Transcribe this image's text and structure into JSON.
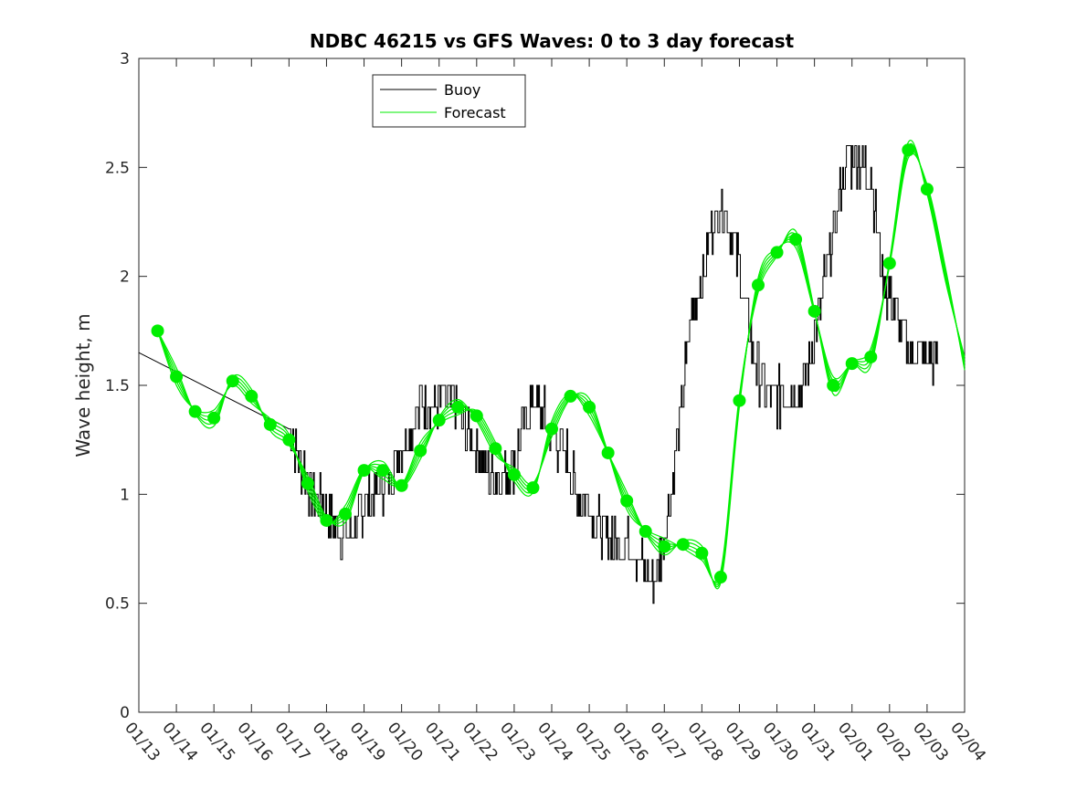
{
  "chart_data": {
    "type": "line",
    "title": "NDBC 46215 vs GFS Waves: 0 to 3 day forecast",
    "xlabel": "",
    "ylabel": "Wave height, m",
    "ylim": [
      0,
      3
    ],
    "xlim": [
      0,
      22
    ],
    "yticks": [
      0,
      0.5,
      1,
      1.5,
      2,
      2.5,
      3
    ],
    "ytick_labels": [
      "0",
      "0.5",
      "1",
      "1.5",
      "2",
      "2.5",
      "3"
    ],
    "xtick_labels": [
      "01/13",
      "01/14",
      "01/15",
      "01/16",
      "01/17",
      "01/18",
      "01/19",
      "01/20",
      "01/21",
      "01/22",
      "01/23",
      "01/24",
      "01/25",
      "01/26",
      "01/27",
      "01/28",
      "01/29",
      "01/30",
      "01/31",
      "02/01",
      "02/02",
      "02/03",
      "02/04"
    ],
    "grid": false,
    "legend": {
      "position": "top-center",
      "entries": [
        "Buoy",
        "Forecast"
      ]
    },
    "colors": {
      "buoy": "#000000",
      "forecast": "#00ee00"
    },
    "buoy": {
      "name": "Buoy",
      "x": [
        0,
        4,
        4.3,
        4.6,
        4.9,
        5.2,
        5.5,
        5.8,
        6.0,
        6.3,
        6.6,
        6.9,
        7.2,
        7.5,
        7.8,
        8.1,
        8.4,
        8.7,
        9.0,
        9.3,
        9.6,
        9.9,
        10.2,
        10.5,
        10.8,
        11.1,
        11.4,
        11.7,
        12.0,
        12.3,
        12.6,
        12.9,
        13.2,
        13.5,
        13.8,
        14.1,
        14.4,
        14.7,
        15.0,
        15.3,
        15.6,
        15.9,
        16.2,
        16.5,
        16.8,
        17.1,
        17.4,
        17.7,
        18.0,
        18.3,
        18.6,
        18.9,
        19.2,
        19.5,
        19.8,
        20.1,
        20.4,
        20.7,
        21.0,
        21.3
      ],
      "values": [
        1.65,
        1.3,
        1.15,
        1.0,
        0.95,
        0.85,
        0.8,
        0.88,
        0.95,
        1.02,
        1.05,
        1.2,
        1.3,
        1.4,
        1.42,
        1.45,
        1.4,
        1.3,
        1.2,
        1.1,
        1.05,
        1.1,
        1.25,
        1.45,
        1.35,
        1.25,
        1.15,
        1.0,
        0.95,
        0.85,
        0.8,
        0.78,
        0.75,
        0.62,
        0.65,
        0.9,
        1.3,
        1.8,
        2.0,
        2.25,
        2.35,
        2.1,
        1.8,
        1.55,
        1.45,
        1.45,
        1.45,
        1.5,
        1.7,
        2.0,
        2.3,
        2.55,
        2.55,
        2.45,
        2.0,
        1.85,
        1.7,
        1.6,
        1.6,
        1.6
      ]
    },
    "forecast": {
      "name": "Forecast",
      "x": [
        0.5,
        1.0,
        1.5,
        2.0,
        2.5,
        3.0,
        3.5,
        4.0,
        4.5,
        5.0,
        5.5,
        6.0,
        6.5,
        7.0,
        7.5,
        8.0,
        8.5,
        9.0,
        9.5,
        10.0,
        10.5,
        11.0,
        11.5,
        12.0,
        12.5,
        13.0,
        13.5,
        14.0,
        14.5,
        15.0,
        15.5,
        16.0,
        16.5,
        17.0,
        17.5,
        18.0,
        18.5,
        19.0,
        19.5,
        20.0,
        20.5,
        21.0,
        21.5,
        22.0
      ],
      "values": [
        1.75,
        1.54,
        1.38,
        1.35,
        1.52,
        1.45,
        1.32,
        1.25,
        1.05,
        0.88,
        0.91,
        1.11,
        1.11,
        1.04,
        1.2,
        1.34,
        1.4,
        1.36,
        1.21,
        1.09,
        1.03,
        1.3,
        1.45,
        1.4,
        1.19,
        0.97,
        0.83,
        0.76,
        0.77,
        0.73,
        0.62,
        1.43,
        1.96,
        2.11,
        2.17,
        1.84,
        1.5,
        1.6,
        1.63,
        2.06,
        2.58,
        2.4,
        2.0,
        1.6
      ],
      "markers": [
        true,
        true,
        true,
        true,
        true,
        true,
        true,
        true,
        true,
        true,
        true,
        true,
        true,
        true,
        true,
        true,
        true,
        true,
        true,
        true,
        true,
        true,
        true,
        true,
        true,
        true,
        true,
        true,
        true,
        true,
        true,
        true,
        true,
        true,
        true,
        true,
        true,
        true,
        true,
        true,
        true,
        true,
        false,
        false
      ]
    }
  }
}
